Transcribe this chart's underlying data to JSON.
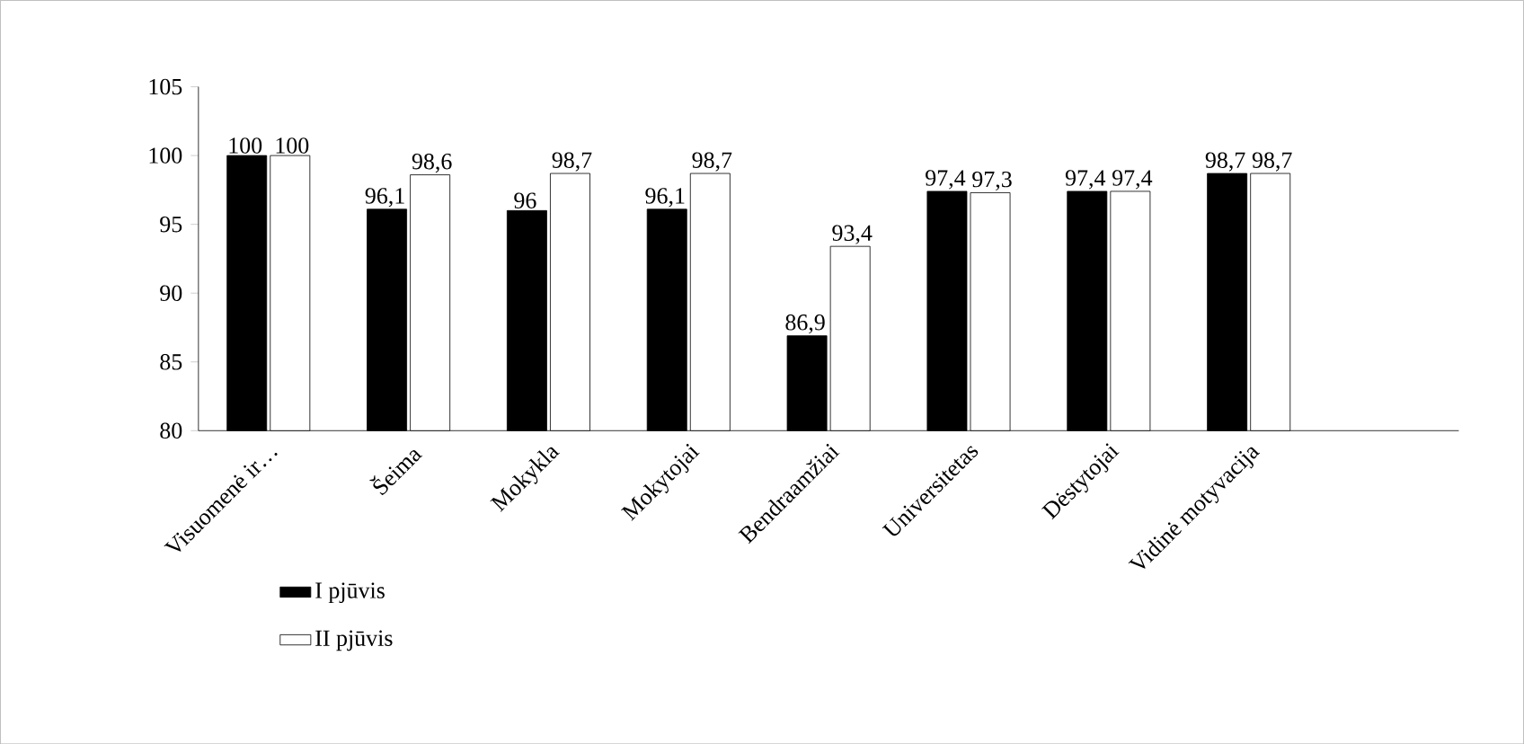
{
  "chart_data": {
    "type": "bar",
    "categories": [
      "Visuomenė ir…",
      "Šeima",
      "Mokykla",
      "Mokytojai",
      "Bendraamžiai",
      "Universitetas",
      "Dėstytojai",
      "Vidinė motyvacija",
      null
    ],
    "series": [
      {
        "name": "I pjūvis",
        "color": "#000000",
        "values": [
          100,
          96.1,
          96,
          96.1,
          86.9,
          97.4,
          97.4,
          98.7,
          null
        ],
        "value_labels": [
          "100",
          "96,1",
          "96",
          "96,1",
          "86,9",
          "97,4",
          "97,4",
          "98,7",
          null
        ]
      },
      {
        "name": "II pjūvis",
        "color": "#ffffff",
        "values": [
          100,
          98.6,
          98.7,
          98.7,
          93.4,
          97.3,
          97.4,
          98.7,
          null
        ],
        "value_labels": [
          "100",
          "98,6",
          "98,7",
          "98,7",
          "93,4",
          "97,3",
          "97,4",
          "98,7",
          null
        ]
      }
    ],
    "ylim": [
      80,
      105
    ],
    "yticks": [
      80,
      85,
      90,
      95,
      100,
      105
    ],
    "legend": "bottom left",
    "grid": false
  }
}
